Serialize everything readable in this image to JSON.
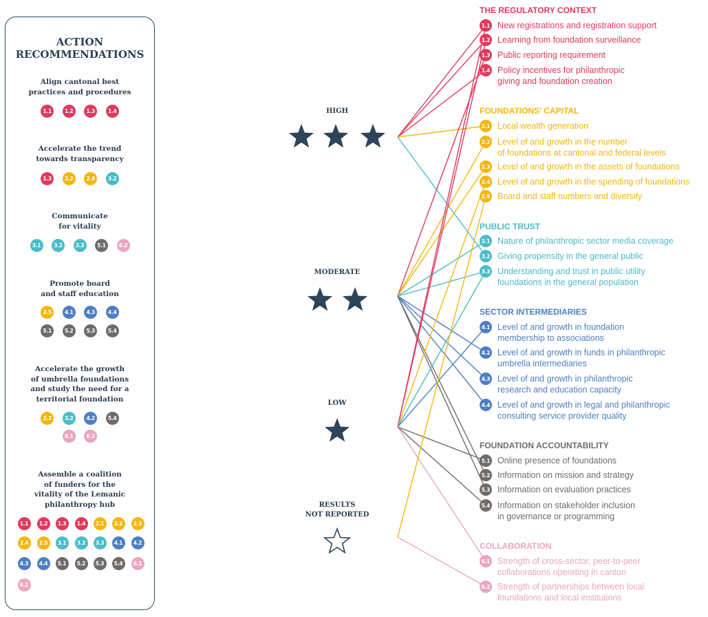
{
  "sidebar": {
    "title": "ACTION\nRECOMMENDATIONS",
    "groups": [
      {
        "heading": "Align cantonal best\npractices and procedures",
        "codes": [
          "1.1",
          "1.2",
          "1.3",
          "1.4"
        ]
      },
      {
        "heading": "Accelerate the trend\ntowards transparency",
        "codes": [
          "1.3",
          "2.2",
          "2.4",
          "3.2"
        ]
      },
      {
        "heading": "Communicate\nfor vitality",
        "codes": [
          "3.1",
          "3.2",
          "3.3",
          "5.1",
          "6.2"
        ]
      },
      {
        "heading": "Promote board\nand staff education",
        "codes": [
          "2.5",
          "4.1",
          "4.3",
          "4.4",
          "5.1",
          "5.2",
          "5.3",
          "5.4"
        ]
      },
      {
        "heading": "Accelerate the growth\nof umbrella foundations\nand study the need for a\nterritorial foundation",
        "codes": [
          "2.2",
          "3.2",
          "4.2",
          "5.4",
          "6.1",
          "6.2"
        ]
      },
      {
        "heading": "Assemble a coalition\nof funders for the\nvitality of the Lemanic\nphilanthropy hub",
        "codes": [
          "1.1",
          "1.2",
          "1.3",
          "1.4",
          "2.1",
          "2.2",
          "2.3",
          "2.4",
          "2.5",
          "3.1",
          "3.2",
          "3.3",
          "4.1",
          "4.2",
          "4.3",
          "4.4",
          "5.1",
          "5.2",
          "5.3",
          "5.4",
          "6.1",
          "6.2"
        ]
      }
    ]
  },
  "levels": [
    {
      "label": "HIGH",
      "stars": 3,
      "filled": true
    },
    {
      "label": "MODERATE",
      "stars": 2,
      "filled": true
    },
    {
      "label": "LOW",
      "stars": 1,
      "filled": true
    },
    {
      "label": "RESULTS\nNOT REPORTED",
      "stars": 1,
      "filled": false
    }
  ],
  "categories": [
    {
      "title": "THE REGULATORY CONTEXT",
      "color": "#e03a5c",
      "items": [
        {
          "code": "1.1",
          "text": "New registrations and registration support"
        },
        {
          "code": "1.2",
          "text": "Learning from foundation surveillance"
        },
        {
          "code": "1.3",
          "text": "Public reporting requirement"
        },
        {
          "code": "1.4",
          "text": "Policy incentives for philanthropic\ngiving and foundation creation"
        }
      ]
    },
    {
      "title": "FOUNDATIONS' CAPITAL",
      "color": "#f4b60f",
      "items": [
        {
          "code": "2.1",
          "text": "Local wealth generation"
        },
        {
          "code": "2.2",
          "text": "Level of and growth in the number\nof foundations at cantonal and federal levels"
        },
        {
          "code": "2.3",
          "text": "Level of and growth in the assets of foundations"
        },
        {
          "code": "2.4",
          "text": "Level of and growth in the spending of foundations"
        },
        {
          "code": "2.5",
          "text": "Board and staff numbers and diversity"
        }
      ]
    },
    {
      "title": "PUBLIC TRUST",
      "color": "#4bbcc8",
      "items": [
        {
          "code": "3.1",
          "text": "Nature of philanthropic sector media coverage"
        },
        {
          "code": "3.2",
          "text": "Giving propensity in the general public"
        },
        {
          "code": "3.3",
          "text": "Understanding and trust in public utility\nfoundations in the general population"
        }
      ]
    },
    {
      "title": "SECTOR INTERMEDIARIES",
      "color": "#4e7fc2",
      "items": [
        {
          "code": "4.1",
          "text": "Level of and growth in foundation\nmembership to associations"
        },
        {
          "code": "4.2",
          "text": "Level of and growth in funds in philanthropic\numbrella intermediaries"
        },
        {
          "code": "4.3",
          "text": "Level of and growth in philanthropic\nresearch and education capacity"
        },
        {
          "code": "4.4",
          "text": "Level of and growth in legal and philanthropic\nconsulting service provider quality"
        }
      ]
    },
    {
      "title": "FOUNDATION ACCOUNTABILITY",
      "color": "#6f6b68",
      "items": [
        {
          "code": "5.1",
          "text": "Online presence of foundations"
        },
        {
          "code": "5.2",
          "text": "Information on mission and strategy"
        },
        {
          "code": "5.3",
          "text": "Information on evaluation practices"
        },
        {
          "code": "5.4",
          "text": "Information on stakeholder inclusion\nin governance or programming"
        }
      ]
    },
    {
      "title": "COLLABORATION",
      "color": "#e9a6c0",
      "items": [
        {
          "code": "6.1",
          "text": "Strength of cross-sector, peer-to-peer\ncollaborations operating in canton"
        },
        {
          "code": "6.2",
          "text": "Strength of partnerships between local\nfoundations and local institutions"
        }
      ]
    }
  ],
  "links": [
    {
      "level": 0,
      "code": "1.1"
    },
    {
      "level": 0,
      "code": "1.2"
    },
    {
      "level": 0,
      "code": "1.4"
    },
    {
      "level": 0,
      "code": "2.1"
    },
    {
      "level": 0,
      "code": "3.2"
    },
    {
      "level": 1,
      "code": "1.3"
    },
    {
      "level": 1,
      "code": "2.2"
    },
    {
      "level": 1,
      "code": "2.3"
    },
    {
      "level": 1,
      "code": "3.1"
    },
    {
      "level": 1,
      "code": "3.3"
    },
    {
      "level": 1,
      "code": "4.2"
    },
    {
      "level": 1,
      "code": "4.3"
    },
    {
      "level": 1,
      "code": "4.4"
    },
    {
      "level": 1,
      "code": "5.2"
    },
    {
      "level": 1,
      "code": "5.3"
    },
    {
      "level": 2,
      "code": "1.1"
    },
    {
      "level": 2,
      "code": "1.2"
    },
    {
      "level": 2,
      "code": "2.4"
    },
    {
      "level": 2,
      "code": "3.3"
    },
    {
      "level": 2,
      "code": "4.1"
    },
    {
      "level": 2,
      "code": "5.1"
    },
    {
      "level": 2,
      "code": "5.4"
    },
    {
      "level": 2,
      "code": "6.1"
    },
    {
      "level": 3,
      "code": "2.5"
    },
    {
      "level": 3,
      "code": "6.2"
    }
  ]
}
